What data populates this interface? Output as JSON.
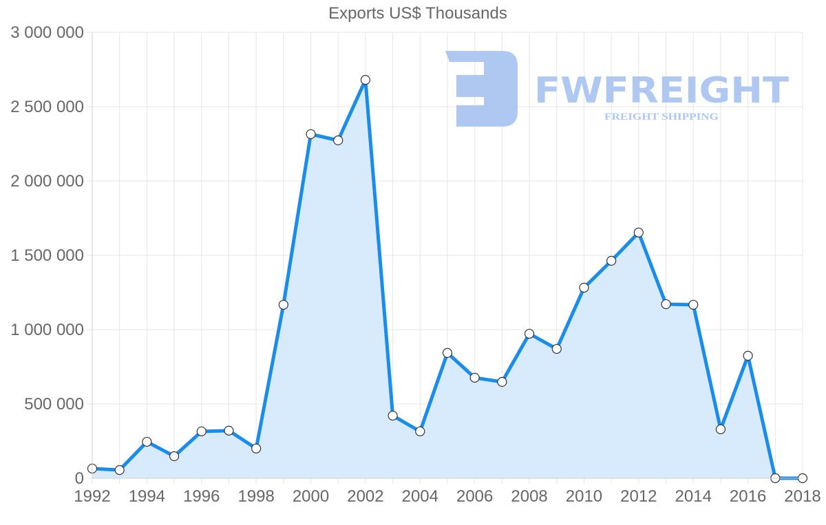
{
  "chart_data": {
    "type": "area",
    "title": "Exports US$ Thousands",
    "xlabel": "",
    "ylabel": "",
    "ylim": [
      0,
      3000000
    ],
    "y_ticks": [
      "0",
      "500 000",
      "1 000 000",
      "1 500 000",
      "2 000 000",
      "2 500 000",
      "3 000 000"
    ],
    "x_ticks": [
      "1992",
      "1994",
      "1996",
      "1998",
      "2000",
      "2002",
      "2004",
      "2006",
      "2008",
      "2010",
      "2012",
      "2014",
      "2016",
      "2018"
    ],
    "grid": true,
    "legend": null,
    "x": [
      1992,
      1993,
      1994,
      1995,
      1996,
      1997,
      1998,
      1999,
      2000,
      2001,
      2002,
      2003,
      2004,
      2005,
      2006,
      2007,
      2008,
      2009,
      2010,
      2011,
      2012,
      2013,
      2014,
      2015,
      2016,
      2017,
      2018
    ],
    "series": [
      {
        "name": "Exports US$ Thousands",
        "values": [
          65000,
          55000,
          245000,
          148000,
          315000,
          320000,
          200000,
          1167000,
          2315000,
          2273000,
          2680000,
          421000,
          315000,
          843000,
          676000,
          648000,
          972000,
          870000,
          1282000,
          1463000,
          1653000,
          1171000,
          1167000,
          329000,
          824000,
          0,
          0
        ]
      }
    ],
    "colors": {
      "line": "#1a8ceb",
      "fill": "#d6eafc",
      "marker_fill": "#ffffff",
      "marker_stroke": "#333333"
    }
  },
  "watermark": {
    "brand": "FWFREIGHT",
    "tagline": "FREIGHT SHIPPING",
    "color": "#aec8f2"
  }
}
